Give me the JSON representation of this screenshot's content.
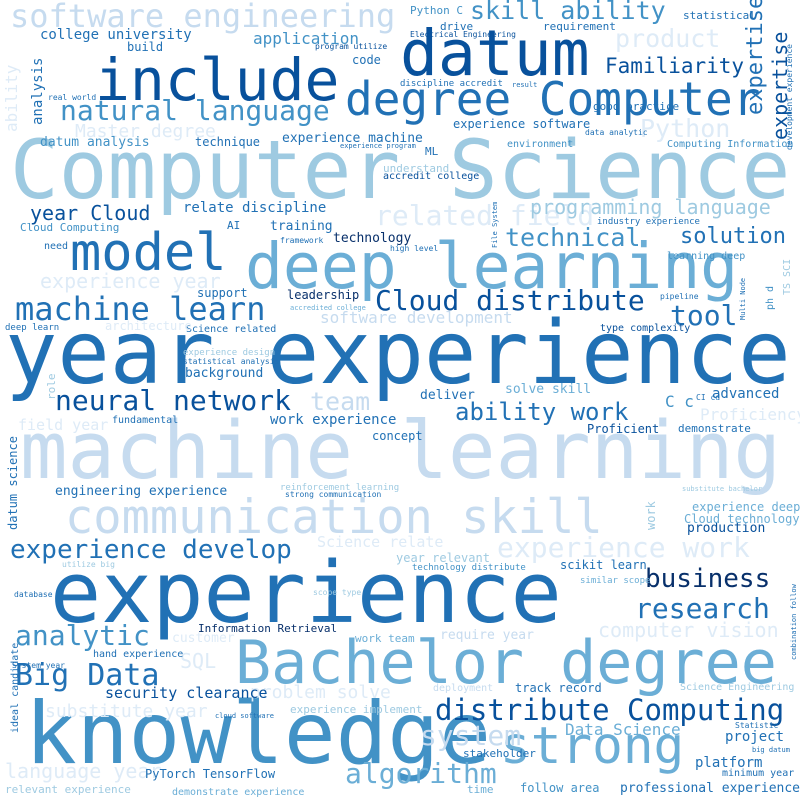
{
  "words": [
    "Computer Science",
    "year experience",
    "machine learning",
    "experience",
    "knowledge",
    "Bachelor degree",
    "deep learning",
    "communication skill",
    "datum",
    "include",
    "degree Computer",
    "model",
    "strong",
    "related field",
    "machine learn",
    "natural language",
    "software engineering",
    "Cloud distribute",
    "neural network",
    "ability work",
    "team",
    "tool",
    "solution",
    "experience develop",
    "experience work",
    "business",
    "research",
    "analytic",
    "Big Data",
    "distribute Computing",
    "system",
    "algorithm",
    "technical",
    "programming language",
    "Familiarity",
    "skill ability",
    "product",
    "Python",
    "expertise",
    "expertise",
    "year Cloud",
    "Master degree",
    "computer vision",
    "software development",
    "problem solve",
    "SQL",
    "security clearance",
    "substitute year",
    "language year",
    "experience year",
    "Data Science",
    "project",
    "platform",
    "professional experience",
    "follow area",
    "track record",
    "advanced",
    "Proficiency",
    "Proficient",
    "demonstrate",
    "production",
    "Cloud technology",
    "experience deep",
    "C c",
    "engineering experience",
    "work experience",
    "concept",
    "deliver",
    "solve skill",
    "background",
    "support",
    "leadership",
    "technology",
    "training",
    "relate discipline",
    "experience machine",
    "technique",
    "datum analysis",
    "college university",
    "build",
    "application",
    "code",
    "analysis",
    "ability",
    "experience software",
    "environment",
    "Computing Information",
    "good practice",
    "requirement",
    "drive",
    "Python C",
    "statistical",
    "ML",
    "understand",
    "accredit college",
    "Cloud Computing",
    "AI",
    "need",
    "industry experience",
    "learning deep",
    "Science related",
    "type complexity",
    "fundamental",
    "datum science",
    "field year",
    "Science relate",
    "year relevant",
    "technology distribute",
    "scikit learn",
    "similar scope",
    "Information Retrieval",
    "work team",
    "require year",
    "customer",
    "hand experience",
    "ideal candidate",
    "stakeholder",
    "time",
    "PyTorch TensorFlow",
    "demonstrate experience",
    "relevant experience",
    "minimum year",
    "Science Engineering",
    "deployment",
    "strong communication",
    "reinforcement learning",
    "experience implement",
    "Electrical Engineering",
    "program utilize",
    "discipline accredit",
    "data analytic",
    "real world",
    "framework",
    "high level",
    "pipeline",
    "deep learn",
    "statistical analysis",
    "development experience",
    "database",
    "System year",
    "cloud software",
    "Statistic",
    "big datum",
    "combination follow",
    "role",
    "work",
    "utilize big",
    "substitute bachelor",
    "architecture",
    "experience design",
    "CI cd",
    "TS SCI",
    "ph d",
    "File System",
    "Multi Node",
    "result",
    "scope type",
    "accredited college",
    "experience program"
  ]
}
